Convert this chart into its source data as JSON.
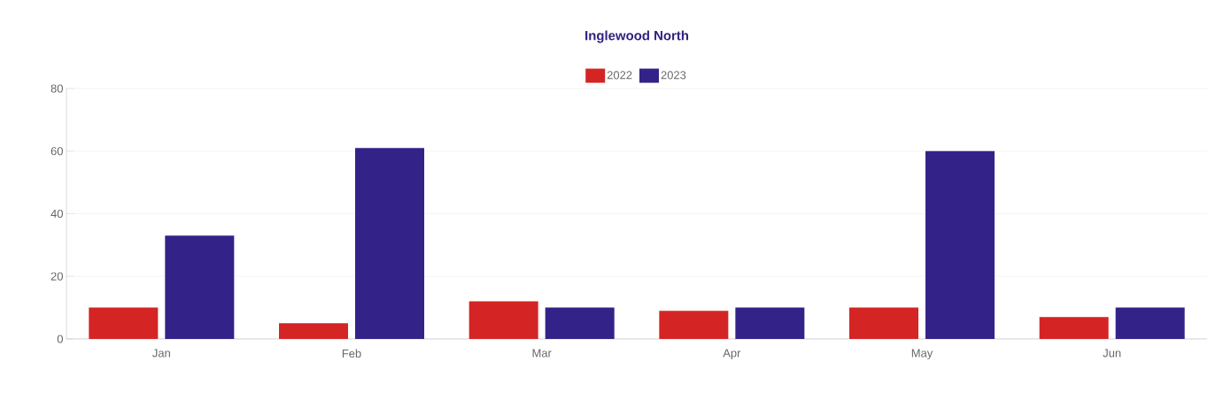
{
  "chart_data": {
    "type": "bar",
    "title": "Inglewood North",
    "categories": [
      "Jan",
      "Feb",
      "Mar",
      "Apr",
      "May",
      "Jun"
    ],
    "series": [
      {
        "name": "2022",
        "color": "#d52424",
        "values": [
          10,
          5,
          12,
          9,
          10,
          7
        ]
      },
      {
        "name": "2023",
        "color": "#332288",
        "values": [
          33,
          61,
          10,
          10,
          60,
          10
        ]
      }
    ],
    "ylim": [
      0,
      80
    ],
    "yticks": [
      0,
      20,
      40,
      60,
      80
    ],
    "grid": "y",
    "legend": "top"
  }
}
